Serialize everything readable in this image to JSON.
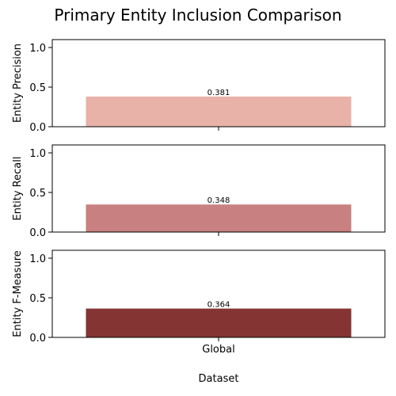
{
  "chart_data": {
    "type": "bar",
    "title": "Primary Entity Inclusion Comparison",
    "xlabel": "Dataset",
    "categories": [
      "Global"
    ],
    "panels": [
      {
        "ylabel": "Entity Precision",
        "ylim": [
          0,
          1.1
        ],
        "yticks": [
          "0.0",
          "0.5",
          "1.0"
        ],
        "values": [
          0.381
        ],
        "data_labels": [
          "0.381"
        ],
        "color": "#e8b2a9"
      },
      {
        "ylabel": "Entity Recall",
        "ylim": [
          0,
          1.1
        ],
        "yticks": [
          "0.0",
          "0.5",
          "1.0"
        ],
        "values": [
          0.348
        ],
        "data_labels": [
          "0.348"
        ],
        "color": "#c98080"
      },
      {
        "ylabel": "Entity F-Measure",
        "ylim": [
          0,
          1.1
        ],
        "yticks": [
          "0.0",
          "0.5",
          "1.0"
        ],
        "values": [
          0.364
        ],
        "data_labels": [
          "0.364"
        ],
        "color": "#853434"
      }
    ],
    "grid": false,
    "legend": "none"
  }
}
